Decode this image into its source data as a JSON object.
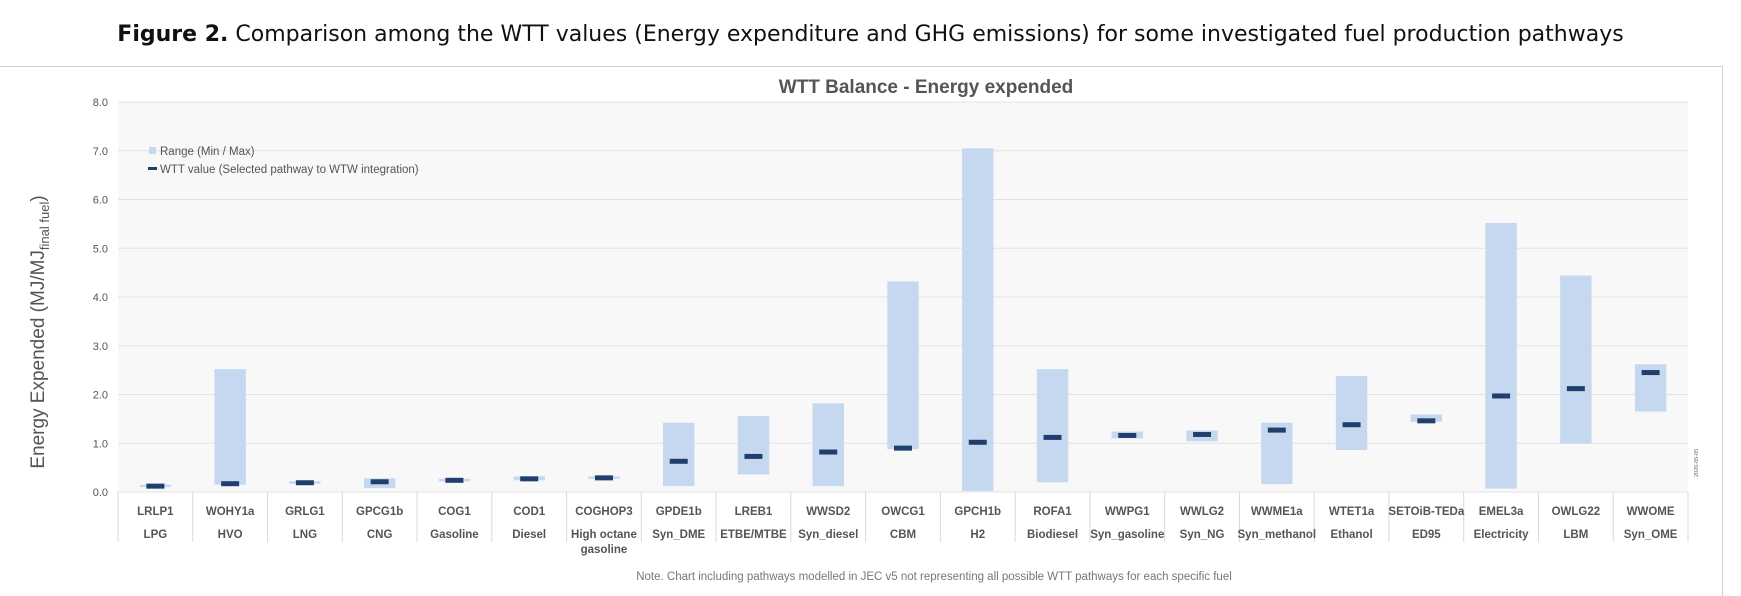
{
  "figure": {
    "label": "Figure 2.",
    "caption": "Comparison among the WTT values (Energy expenditure and GHG emissions) for some investigated fuel production pathways"
  },
  "chart_data": {
    "type": "bar",
    "title": "WTT Balance - Energy expended",
    "ylabel_main": "Energy Expended (MJ/MJ",
    "ylabel_sub": "final fuel",
    "ylabel_close": ")",
    "ylim": [
      0,
      8
    ],
    "yticks": [
      "0.0",
      "1.0",
      "2.0",
      "3.0",
      "4.0",
      "5.0",
      "6.0",
      "7.0",
      "8.0"
    ],
    "grid": true,
    "legend": {
      "placement": "top-left",
      "range_label": "Range (Min / Max)",
      "value_label": "WTT value (Selected pathway to WTW integration)"
    },
    "colors": {
      "range": "#c5d8f0",
      "value": "#1f3f6d",
      "grid": "#e2e2e2",
      "plot_bg": "#f8f8f8"
    },
    "categories": [
      {
        "code": "LRLP1",
        "fuel": [
          "LPG"
        ],
        "min": 0.1,
        "max": 0.15,
        "value": 0.12
      },
      {
        "code": "WOHY1a",
        "fuel": [
          "HVO"
        ],
        "min": 0.15,
        "max": 2.52,
        "value": 0.17
      },
      {
        "code": "GRLG1",
        "fuel": [
          "LNG"
        ],
        "min": 0.17,
        "max": 0.22,
        "value": 0.19
      },
      {
        "code": "GPCG1b",
        "fuel": [
          "CNG"
        ],
        "min": 0.08,
        "max": 0.28,
        "value": 0.21
      },
      {
        "code": "COG1",
        "fuel": [
          "Gasoline"
        ],
        "min": 0.22,
        "max": 0.27,
        "value": 0.24
      },
      {
        "code": "COD1",
        "fuel": [
          "Diesel"
        ],
        "min": 0.24,
        "max": 0.32,
        "value": 0.27
      },
      {
        "code": "COGHOP3",
        "fuel": [
          "High octane",
          "gasoline"
        ],
        "min": 0.27,
        "max": 0.32,
        "value": 0.29
      },
      {
        "code": "GPDE1b",
        "fuel": [
          "Syn_DME"
        ],
        "min": 0.12,
        "max": 1.42,
        "value": 0.63
      },
      {
        "code": "LREB1",
        "fuel": [
          "ETBE/MTBE"
        ],
        "min": 0.36,
        "max": 1.56,
        "value": 0.73
      },
      {
        "code": "WWSD2",
        "fuel": [
          "Syn_diesel"
        ],
        "min": 0.12,
        "max": 1.82,
        "value": 0.82
      },
      {
        "code": "OWCG1",
        "fuel": [
          "CBM"
        ],
        "min": 0.88,
        "max": 4.32,
        "value": 0.9
      },
      {
        "code": "GPCH1b",
        "fuel": [
          "H2"
        ],
        "min": 0.02,
        "max": 7.05,
        "value": 1.02
      },
      {
        "code": "ROFA1",
        "fuel": [
          "Biodiesel"
        ],
        "min": 0.2,
        "max": 2.52,
        "value": 1.12
      },
      {
        "code": "WWPG1",
        "fuel": [
          "Syn_gasoline"
        ],
        "min": 1.1,
        "max": 1.24,
        "value": 1.16
      },
      {
        "code": "WWLG2",
        "fuel": [
          "Syn_NG"
        ],
        "min": 1.04,
        "max": 1.26,
        "value": 1.18
      },
      {
        "code": "WWME1a",
        "fuel": [
          "Syn_methanol"
        ],
        "min": 0.16,
        "max": 1.42,
        "value": 1.27
      },
      {
        "code": "WTET1a",
        "fuel": [
          "Ethanol"
        ],
        "min": 0.86,
        "max": 2.38,
        "value": 1.38
      },
      {
        "code": "SETOiB-TEDa",
        "fuel": [
          "ED95"
        ],
        "min": 1.44,
        "max": 1.59,
        "value": 1.46
      },
      {
        "code": "EMEL3a",
        "fuel": [
          "Electricity"
        ],
        "min": 0.07,
        "max": 5.52,
        "value": 1.97
      },
      {
        "code": "OWLG22",
        "fuel": [
          "LBM"
        ],
        "min": 0.99,
        "max": 4.44,
        "value": 2.12
      },
      {
        "code": "WWOME",
        "fuel": [
          "Syn_OME"
        ],
        "min": 1.65,
        "max": 2.62,
        "value": 2.45
      }
    ],
    "note": "Note. Chart including pathways modelled in JEC v5 not representing all possible WTT pathways for each specific fuel",
    "stamp": "2020-05-05"
  }
}
